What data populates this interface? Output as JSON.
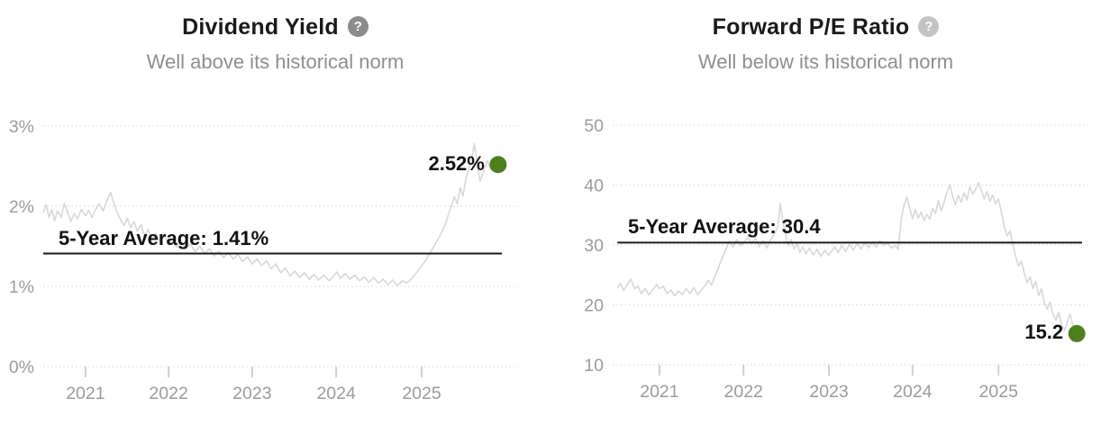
{
  "page": {
    "background": "#ffffff"
  },
  "theme": {
    "series_line_color": "#d7d7d7",
    "grid_color": "#dcdcdc",
    "tick_color": "#cfcfcf",
    "axis_text_color": "#9b9b9b",
    "average_line_color": "#1a1a1a",
    "dot_color": "#4d7f1f",
    "title_color": "#1a1a1a",
    "subtitle_color": "#8e8e8e"
  },
  "charts": [
    {
      "title": "Dividend Yield",
      "help_icon": "?",
      "help_icon_color": "#8c8c8c",
      "subtitle": "Well above its historical norm",
      "avg_label": "5-Year Average: 1.41%",
      "value_label": "2.52%"
    },
    {
      "title": "Forward P/E Ratio",
      "help_icon": "?",
      "help_icon_color": "#c3c3c3",
      "subtitle": "Well below its historical norm",
      "avg_label": "5-Year Average: 30.4",
      "value_label": "15.2"
    }
  ],
  "chart_data": [
    {
      "type": "line",
      "title": "Dividend Yield",
      "subtitle": "Well above its historical norm",
      "ylim": [
        0,
        3
      ],
      "grid": "dotted-horizontal",
      "yticks": [
        {
          "label": "3%",
          "v": 3
        },
        {
          "label": "2%",
          "v": 2
        },
        {
          "label": "1%",
          "v": 1
        },
        {
          "label": "0%",
          "v": 0
        }
      ],
      "xticks": [
        {
          "label": "2021",
          "f": 0.089
        },
        {
          "label": "2022",
          "f": 0.264
        },
        {
          "label": "2023",
          "f": 0.44
        },
        {
          "label": "2024",
          "f": 0.617
        },
        {
          "label": "2025",
          "f": 0.797
        }
      ],
      "average": {
        "value": 1.41,
        "label": "5-Year Average: 1.41%",
        "x0f": 0.0,
        "x1f": 0.966
      },
      "current": {
        "value": 2.52,
        "label": "2.52%"
      },
      "series": [
        [
          0.0,
          1.92
        ],
        [
          0.006,
          2.02
        ],
        [
          0.012,
          1.86
        ],
        [
          0.018,
          1.96
        ],
        [
          0.024,
          1.82
        ],
        [
          0.03,
          1.94
        ],
        [
          0.038,
          1.86
        ],
        [
          0.044,
          2.04
        ],
        [
          0.051,
          1.93
        ],
        [
          0.058,
          1.81
        ],
        [
          0.065,
          1.91
        ],
        [
          0.072,
          1.84
        ],
        [
          0.08,
          1.96
        ],
        [
          0.089,
          1.88
        ],
        [
          0.096,
          1.95
        ],
        [
          0.103,
          1.86
        ],
        [
          0.11,
          1.96
        ],
        [
          0.118,
          2.03
        ],
        [
          0.126,
          1.94
        ],
        [
          0.134,
          2.07
        ],
        [
          0.142,
          2.17
        ],
        [
          0.149,
          2.03
        ],
        [
          0.156,
          1.92
        ],
        [
          0.163,
          1.83
        ],
        [
          0.17,
          1.76
        ],
        [
          0.177,
          1.85
        ],
        [
          0.184,
          1.73
        ],
        [
          0.191,
          1.81
        ],
        [
          0.198,
          1.69
        ],
        [
          0.206,
          1.77
        ],
        [
          0.213,
          1.63
        ],
        [
          0.221,
          1.71
        ],
        [
          0.229,
          1.59
        ],
        [
          0.237,
          1.66
        ],
        [
          0.246,
          1.56
        ],
        [
          0.255,
          1.63
        ],
        [
          0.264,
          1.53
        ],
        [
          0.272,
          1.59
        ],
        [
          0.281,
          1.49
        ],
        [
          0.29,
          1.56
        ],
        [
          0.3,
          1.47
        ],
        [
          0.31,
          1.53
        ],
        [
          0.32,
          1.43
        ],
        [
          0.33,
          1.5
        ],
        [
          0.34,
          1.41
        ],
        [
          0.35,
          1.47
        ],
        [
          0.36,
          1.38
        ],
        [
          0.37,
          1.44
        ],
        [
          0.38,
          1.36
        ],
        [
          0.39,
          1.42
        ],
        [
          0.4,
          1.34
        ],
        [
          0.41,
          1.4
        ],
        [
          0.42,
          1.31
        ],
        [
          0.43,
          1.37
        ],
        [
          0.44,
          1.28
        ],
        [
          0.45,
          1.34
        ],
        [
          0.46,
          1.26
        ],
        [
          0.47,
          1.32
        ],
        [
          0.48,
          1.22
        ],
        [
          0.49,
          1.28
        ],
        [
          0.5,
          1.17
        ],
        [
          0.51,
          1.23
        ],
        [
          0.52,
          1.13
        ],
        [
          0.53,
          1.19
        ],
        [
          0.54,
          1.11
        ],
        [
          0.55,
          1.17
        ],
        [
          0.56,
          1.09
        ],
        [
          0.57,
          1.15
        ],
        [
          0.58,
          1.08
        ],
        [
          0.591,
          1.14
        ],
        [
          0.602,
          1.07
        ],
        [
          0.612,
          1.13
        ],
        [
          0.618,
          1.18
        ],
        [
          0.626,
          1.1
        ],
        [
          0.636,
          1.16
        ],
        [
          0.646,
          1.09
        ],
        [
          0.656,
          1.14
        ],
        [
          0.666,
          1.07
        ],
        [
          0.676,
          1.12
        ],
        [
          0.686,
          1.05
        ],
        [
          0.696,
          1.11
        ],
        [
          0.706,
          1.04
        ],
        [
          0.716,
          1.09
        ],
        [
          0.726,
          1.02
        ],
        [
          0.736,
          1.08
        ],
        [
          0.746,
          1.01
        ],
        [
          0.756,
          1.07
        ],
        [
          0.766,
          1.04
        ],
        [
          0.776,
          1.1
        ],
        [
          0.786,
          1.17
        ],
        [
          0.796,
          1.25
        ],
        [
          0.806,
          1.33
        ],
        [
          0.816,
          1.43
        ],
        [
          0.826,
          1.53
        ],
        [
          0.836,
          1.64
        ],
        [
          0.846,
          1.76
        ],
        [
          0.853,
          1.89
        ],
        [
          0.86,
          2.01
        ],
        [
          0.866,
          2.12
        ],
        [
          0.872,
          2.03
        ],
        [
          0.878,
          2.23
        ],
        [
          0.884,
          2.13
        ],
        [
          0.89,
          2.33
        ],
        [
          0.896,
          2.46
        ],
        [
          0.902,
          2.59
        ],
        [
          0.908,
          2.78
        ],
        [
          0.914,
          2.53
        ],
        [
          0.92,
          2.31
        ],
        [
          0.927,
          2.43
        ],
        [
          0.935,
          2.57
        ],
        [
          0.943,
          2.45
        ],
        [
          0.951,
          2.59
        ],
        [
          0.958,
          2.52
        ]
      ]
    },
    {
      "type": "line",
      "title": "Forward P/E Ratio",
      "subtitle": "Well below its historical norm",
      "ylim": [
        10,
        50
      ],
      "grid": "dotted-horizontal",
      "yticks": [
        {
          "label": "50",
          "v": 50
        },
        {
          "label": "40",
          "v": 40
        },
        {
          "label": "30",
          "v": 30
        },
        {
          "label": "20",
          "v": 20
        },
        {
          "label": "10",
          "v": 10
        }
      ],
      "xticks": [
        {
          "label": "2021",
          "f": 0.098
        },
        {
          "label": "2022",
          "f": 0.274
        },
        {
          "label": "2023",
          "f": 0.453
        },
        {
          "label": "2024",
          "f": 0.628
        },
        {
          "label": "2025",
          "f": 0.808
        }
      ],
      "average": {
        "value": 30.4,
        "label": "5-Year Average: 30.4",
        "x0f": 0.01,
        "x1f": 0.983
      },
      "current": {
        "value": 15.2,
        "label": "15.2"
      },
      "series": [
        [
          0.01,
          22.8
        ],
        [
          0.016,
          23.6
        ],
        [
          0.023,
          22.4
        ],
        [
          0.03,
          23.3
        ],
        [
          0.038,
          24.3
        ],
        [
          0.046,
          22.7
        ],
        [
          0.053,
          23.1
        ],
        [
          0.06,
          21.9
        ],
        [
          0.068,
          22.7
        ],
        [
          0.076,
          21.7
        ],
        [
          0.084,
          22.5
        ],
        [
          0.092,
          23.4
        ],
        [
          0.098,
          22.7
        ],
        [
          0.106,
          23.1
        ],
        [
          0.114,
          21.9
        ],
        [
          0.122,
          22.5
        ],
        [
          0.13,
          21.5
        ],
        [
          0.138,
          22.3
        ],
        [
          0.146,
          21.7
        ],
        [
          0.154,
          22.7
        ],
        [
          0.162,
          21.9
        ],
        [
          0.17,
          22.9
        ],
        [
          0.178,
          21.7
        ],
        [
          0.186,
          22.5
        ],
        [
          0.194,
          23.3
        ],
        [
          0.2,
          24.1
        ],
        [
          0.207,
          23.3
        ],
        [
          0.214,
          24.7
        ],
        [
          0.221,
          26.1
        ],
        [
          0.228,
          27.6
        ],
        [
          0.236,
          29.1
        ],
        [
          0.244,
          30.6
        ],
        [
          0.252,
          29.7
        ],
        [
          0.26,
          30.9
        ],
        [
          0.268,
          29.9
        ],
        [
          0.275,
          30.5
        ],
        [
          0.283,
          31.3
        ],
        [
          0.291,
          30.3
        ],
        [
          0.299,
          31.1
        ],
        [
          0.307,
          29.7
        ],
        [
          0.315,
          30.7
        ],
        [
          0.323,
          29.5
        ],
        [
          0.331,
          30.9
        ],
        [
          0.339,
          31.9
        ],
        [
          0.346,
          33.1
        ],
        [
          0.351,
          36.9
        ],
        [
          0.356,
          34.1
        ],
        [
          0.362,
          31.7
        ],
        [
          0.368,
          29.9
        ],
        [
          0.374,
          30.9
        ],
        [
          0.38,
          29.3
        ],
        [
          0.386,
          30.3
        ],
        [
          0.392,
          28.7
        ],
        [
          0.398,
          29.7
        ],
        [
          0.405,
          28.5
        ],
        [
          0.412,
          29.5
        ],
        [
          0.42,
          28.3
        ],
        [
          0.428,
          29.3
        ],
        [
          0.436,
          28.1
        ],
        [
          0.444,
          29.1
        ],
        [
          0.452,
          28.3
        ],
        [
          0.458,
          28.9
        ],
        [
          0.465,
          29.7
        ],
        [
          0.472,
          28.7
        ],
        [
          0.48,
          29.9
        ],
        [
          0.488,
          28.9
        ],
        [
          0.496,
          30.1
        ],
        [
          0.504,
          29.1
        ],
        [
          0.512,
          30.3
        ],
        [
          0.52,
          29.3
        ],
        [
          0.528,
          30.5
        ],
        [
          0.536,
          29.5
        ],
        [
          0.544,
          30.5
        ],
        [
          0.552,
          29.7
        ],
        [
          0.56,
          30.7
        ],
        [
          0.568,
          29.9
        ],
        [
          0.576,
          30.3
        ],
        [
          0.584,
          29.5
        ],
        [
          0.592,
          29.9
        ],
        [
          0.598,
          29.3
        ],
        [
          0.604,
          34.1
        ],
        [
          0.61,
          36.6
        ],
        [
          0.616,
          38.0
        ],
        [
          0.622,
          36.1
        ],
        [
          0.628,
          34.4
        ],
        [
          0.634,
          35.9
        ],
        [
          0.64,
          34.5
        ],
        [
          0.646,
          35.5
        ],
        [
          0.652,
          34.1
        ],
        [
          0.658,
          35.1
        ],
        [
          0.664,
          34.3
        ],
        [
          0.67,
          36.1
        ],
        [
          0.676,
          35.3
        ],
        [
          0.682,
          37.4
        ],
        [
          0.688,
          35.7
        ],
        [
          0.694,
          37.1
        ],
        [
          0.7,
          38.8
        ],
        [
          0.706,
          40.1
        ],
        [
          0.712,
          38.1
        ],
        [
          0.718,
          36.7
        ],
        [
          0.724,
          38.3
        ],
        [
          0.73,
          37.1
        ],
        [
          0.736,
          38.7
        ],
        [
          0.742,
          37.5
        ],
        [
          0.748,
          39.7
        ],
        [
          0.754,
          38.5
        ],
        [
          0.76,
          39.3
        ],
        [
          0.766,
          40.4
        ],
        [
          0.772,
          39.1
        ],
        [
          0.778,
          37.7
        ],
        [
          0.784,
          38.9
        ],
        [
          0.79,
          37.3
        ],
        [
          0.796,
          38.3
        ],
        [
          0.802,
          36.9
        ],
        [
          0.808,
          37.7
        ],
        [
          0.814,
          35.5
        ],
        [
          0.82,
          33.1
        ],
        [
          0.826,
          31.5
        ],
        [
          0.832,
          32.3
        ],
        [
          0.838,
          30.1
        ],
        [
          0.844,
          28.1
        ],
        [
          0.85,
          26.5
        ],
        [
          0.856,
          27.3
        ],
        [
          0.862,
          25.3
        ],
        [
          0.868,
          23.7
        ],
        [
          0.874,
          24.7
        ],
        [
          0.88,
          22.7
        ],
        [
          0.886,
          23.9
        ],
        [
          0.892,
          21.5
        ],
        [
          0.898,
          22.7
        ],
        [
          0.904,
          20.3
        ],
        [
          0.91,
          19.3
        ],
        [
          0.916,
          20.5
        ],
        [
          0.922,
          18.5
        ],
        [
          0.928,
          17.5
        ],
        [
          0.934,
          18.7
        ],
        [
          0.94,
          16.7
        ],
        [
          0.946,
          15.7
        ],
        [
          0.952,
          17.1
        ],
        [
          0.958,
          18.5
        ],
        [
          0.964,
          16.5
        ],
        [
          0.972,
          15.2
        ]
      ]
    }
  ]
}
